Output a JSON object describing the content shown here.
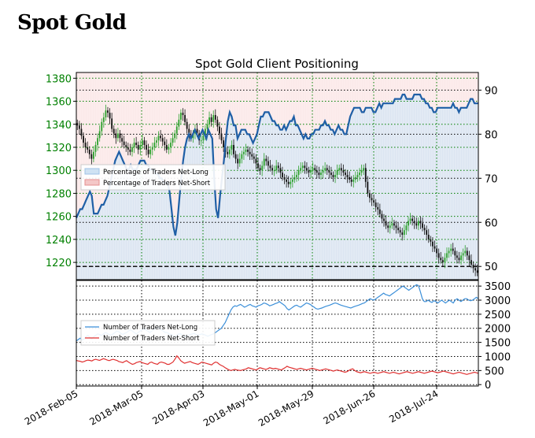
{
  "page": {
    "title": "Spot Gold"
  },
  "chart_data": [
    {
      "type": "line",
      "subtype": "candlestick price with sentiment overlay",
      "title": "Spot Gold Client Positioning",
      "x_tick_labels": [
        "2018-Feb-05",
        "2018-Mar-05",
        "2018-Apr-03",
        "2018-May-01",
        "2018-May-29",
        "2018-Jun-26",
        "2018-Jul-24"
      ],
      "y_left": {
        "ticks": [
          "1220",
          "1240",
          "1260",
          "1280",
          "1300",
          "1320",
          "1340",
          "1360",
          "1380"
        ],
        "range": [
          1205,
          1385
        ],
        "color": "#008000"
      },
      "y_right": {
        "ticks": [
          "50",
          "60",
          "70",
          "80",
          "90"
        ],
        "range": [
          47,
          94
        ]
      },
      "grid": true,
      "legend": {
        "placement": "middle-left",
        "entries": [
          "Percentage of Traders Net-Long",
          "Percentage of Traders Net-Short"
        ]
      },
      "colors": {
        "net_long_fill": "#cfe2f3",
        "net_short_fill": "#f4c7c7",
        "sentiment_line": "#1f5fa6",
        "candle_up": "#2ca02c",
        "candle_down": "#111111"
      },
      "price_close": [
        1339,
        1336,
        1330,
        1324,
        1320,
        1318,
        1314,
        1310,
        1316,
        1322,
        1328,
        1334,
        1342,
        1346,
        1352,
        1350,
        1345,
        1336,
        1332,
        1328,
        1332,
        1328,
        1325,
        1322,
        1320,
        1318,
        1316,
        1320,
        1324,
        1322,
        1318,
        1322,
        1326,
        1322,
        1318,
        1314,
        1318,
        1320,
        1324,
        1326,
        1330,
        1328,
        1325,
        1322,
        1318,
        1320,
        1324,
        1328,
        1332,
        1338,
        1344,
        1350,
        1348,
        1342,
        1336,
        1330,
        1328,
        1332,
        1336,
        1332,
        1326,
        1326,
        1330,
        1336,
        1340,
        1346,
        1342,
        1348,
        1344,
        1338,
        1332,
        1326,
        1320,
        1316,
        1314,
        1318,
        1322,
        1314,
        1310,
        1306,
        1310,
        1314,
        1316,
        1318,
        1316,
        1314,
        1312,
        1310,
        1306,
        1302,
        1300,
        1304,
        1310,
        1308,
        1304,
        1302,
        1300,
        1300,
        1304,
        1302,
        1298,
        1294,
        1292,
        1290,
        1288,
        1290,
        1292,
        1294,
        1296,
        1300,
        1302,
        1304,
        1302,
        1300,
        1298,
        1300,
        1302,
        1300,
        1298,
        1296,
        1298,
        1300,
        1302,
        1300,
        1298,
        1296,
        1294,
        1296,
        1300,
        1302,
        1300,
        1298,
        1296,
        1294,
        1292,
        1290,
        1292,
        1294,
        1296,
        1298,
        1300,
        1302,
        1290,
        1280,
        1276,
        1274,
        1272,
        1268,
        1266,
        1262,
        1258,
        1256,
        1252,
        1250,
        1252,
        1254,
        1252,
        1250,
        1248,
        1246,
        1244,
        1248,
        1252,
        1256,
        1258,
        1256,
        1254,
        1252,
        1256,
        1254,
        1250,
        1248,
        1244,
        1240,
        1238,
        1234,
        1232,
        1228,
        1224,
        1222,
        1220,
        1224,
        1228,
        1230,
        1232,
        1230,
        1226,
        1224,
        1222,
        1226,
        1228,
        1230,
        1226,
        1222,
        1218,
        1215,
        1213,
        1211
      ],
      "net_long_pct": [
        61,
        62,
        63,
        63,
        64,
        65,
        66,
        67,
        66,
        62,
        62,
        62,
        63,
        64,
        64,
        65,
        66,
        68,
        70,
        72,
        74,
        75,
        76,
        75,
        74,
        73,
        72,
        72,
        73,
        72,
        72,
        72,
        73,
        74,
        74,
        74,
        73,
        73,
        72,
        72,
        72,
        71,
        71,
        70,
        70,
        69,
        69,
        69,
        67,
        63,
        59,
        57,
        60,
        65,
        70,
        74,
        77,
        79,
        80,
        79,
        80,
        81,
        80,
        79,
        80,
        81,
        80,
        79,
        81,
        80,
        79,
        70,
        63,
        61,
        66,
        70,
        74,
        79,
        83,
        85,
        84,
        82,
        82,
        79,
        80,
        81,
        81,
        81,
        80,
        80,
        79,
        78,
        79,
        80,
        82,
        84,
        84,
        85,
        85,
        85,
        84,
        83,
        83,
        82,
        82,
        81,
        81,
        82,
        81,
        82,
        83,
        83,
        84,
        82,
        82,
        81,
        80,
        79,
        80,
        79,
        79,
        80,
        80,
        81,
        81,
        81,
        82,
        82,
        83,
        82,
        82,
        81,
        81,
        80,
        81,
        82,
        81,
        81,
        80,
        80,
        82,
        84,
        85,
        86,
        86,
        86,
        86,
        85,
        85,
        86,
        86,
        86,
        86,
        85,
        85,
        86,
        87,
        86,
        87,
        87,
        87,
        87,
        87,
        87,
        88,
        88,
        88,
        88,
        89,
        89,
        88,
        88,
        88,
        88,
        89,
        89,
        89,
        89,
        88,
        88,
        87,
        87,
        86,
        86,
        85,
        85,
        86,
        86,
        86,
        86,
        86,
        86,
        86,
        86,
        87,
        86,
        86,
        85,
        86,
        86,
        86,
        86,
        87,
        88,
        88,
        87,
        87,
        87
      ],
      "dashed_reference": 50
    },
    {
      "type": "line",
      "title": "",
      "y_right": {
        "ticks": [
          "0",
          "500",
          "1000",
          "1500",
          "2000",
          "2500",
          "3000",
          "3500"
        ],
        "range": [
          -50,
          3700
        ]
      },
      "grid": true,
      "legend": {
        "placement": "middle-left",
        "entries": [
          "Number of Traders Net-Long",
          "Number of Traders Net-Short"
        ]
      },
      "colors": {
        "net_long": "#3b8fd9",
        "net_short": "#e03030"
      },
      "series": [
        {
          "name": "Number of Traders Net-Long",
          "values": [
            1550,
            1600,
            1650,
            1580,
            1620,
            1700,
            1750,
            1680,
            1620,
            1700,
            1750,
            1800,
            1780,
            1750,
            1800,
            1850,
            1820,
            1780,
            1750,
            1800,
            1850,
            1900,
            1880,
            1820,
            1780,
            1820,
            1850,
            1900,
            1950,
            1900,
            1850,
            1800,
            1850,
            1900,
            1950,
            2000,
            1950,
            1900,
            1850,
            1900,
            1950,
            2000,
            2050,
            2000,
            1950,
            1900,
            1850,
            1850,
            1800,
            1780,
            1750,
            1700,
            1750,
            1800,
            1800,
            1750,
            1700,
            1720,
            1750,
            1780,
            1800,
            1820,
            1780,
            1750,
            1780,
            1800,
            1780,
            1750,
            1720,
            1750,
            1780,
            1800,
            1850,
            1900,
            1950,
            2000,
            2100,
            2200,
            2350,
            2500,
            2650,
            2750,
            2800,
            2780,
            2820,
            2850,
            2800,
            2750,
            2780,
            2820,
            2850,
            2800,
            2780,
            2750,
            2800,
            2820,
            2850,
            2900,
            2880,
            2850,
            2800,
            2820,
            2850,
            2880,
            2900,
            2950,
            2900,
            2850,
            2800,
            2700,
            2650,
            2700,
            2750,
            2800,
            2820,
            2780,
            2750,
            2800,
            2850,
            2900,
            2880,
            2850,
            2800,
            2750,
            2700,
            2680,
            2700,
            2720,
            2750,
            2780,
            2800,
            2820,
            2850,
            2880,
            2900,
            2880,
            2850,
            2820,
            2800,
            2780,
            2760,
            2740,
            2720,
            2750,
            2780,
            2800,
            2820,
            2850,
            2880,
            2900,
            2950,
            3000,
            3050,
            3020,
            3000,
            3050,
            3100,
            3150,
            3200,
            3250,
            3200,
            3180,
            3150,
            3200,
            3250,
            3300,
            3350,
            3400,
            3450,
            3500,
            3450,
            3400,
            3350,
            3400,
            3450,
            3500,
            3550,
            3520,
            3300,
            3050,
            2950,
            2950,
            3000,
            2950,
            2920,
            2980,
            2950,
            2900,
            2950,
            3000,
            2950,
            2900,
            2950,
            3000,
            2950,
            2900,
            3000,
            3050,
            3000,
            2950,
            3000,
            3050,
            3050,
            3000,
            2980,
            3000,
            3050,
            3100,
            3050
          ],
          "style": "solid"
        },
        {
          "name": "Number of Traders Net-Short",
          "values": [
            860,
            840,
            830,
            800,
            820,
            850,
            870,
            860,
            840,
            880,
            900,
            880,
            860,
            890,
            920,
            900,
            870,
            850,
            880,
            900,
            880,
            860,
            820,
            800,
            780,
            820,
            850,
            800,
            760,
            720,
            740,
            780,
            800,
            820,
            780,
            760,
            740,
            720,
            780,
            800,
            760,
            740,
            720,
            780,
            800,
            780,
            760,
            720,
            720,
            760,
            800,
            900,
            1020,
            950,
            850,
            800,
            760,
            780,
            800,
            820,
            780,
            760,
            740,
            720,
            760,
            800,
            780,
            760,
            740,
            720,
            700,
            760,
            800,
            780,
            720,
            680,
            650,
            600,
            560,
            520,
            500,
            520,
            540,
            520,
            510,
            500,
            520,
            540,
            560,
            600,
            580,
            560,
            540,
            520,
            560,
            600,
            580,
            560,
            540,
            560,
            600,
            580,
            560,
            580,
            560,
            540,
            520,
            560,
            600,
            650,
            620,
            600,
            580,
            560,
            540,
            560,
            580,
            560,
            540,
            520,
            540,
            560,
            580,
            560,
            540,
            520,
            500,
            520,
            540,
            560,
            540,
            520,
            500,
            480,
            500,
            520,
            500,
            480,
            460,
            440,
            460,
            500,
            540,
            560,
            500,
            460,
            440,
            420,
            440,
            460,
            440,
            420,
            400,
            420,
            440,
            420,
            400,
            420,
            440,
            460,
            440,
            420,
            400,
            420,
            440,
            420,
            400,
            380,
            400,
            420,
            440,
            460,
            440,
            420,
            400,
            420,
            440,
            460,
            440,
            420,
            400,
            420,
            440,
            460,
            480,
            460,
            440,
            420,
            440,
            460,
            480,
            460,
            440,
            420,
            400,
            380,
            400,
            420,
            440,
            420,
            400,
            380,
            360,
            380,
            400,
            420,
            440,
            420,
            400
          ],
          "style": "solid"
        }
      ]
    }
  ]
}
